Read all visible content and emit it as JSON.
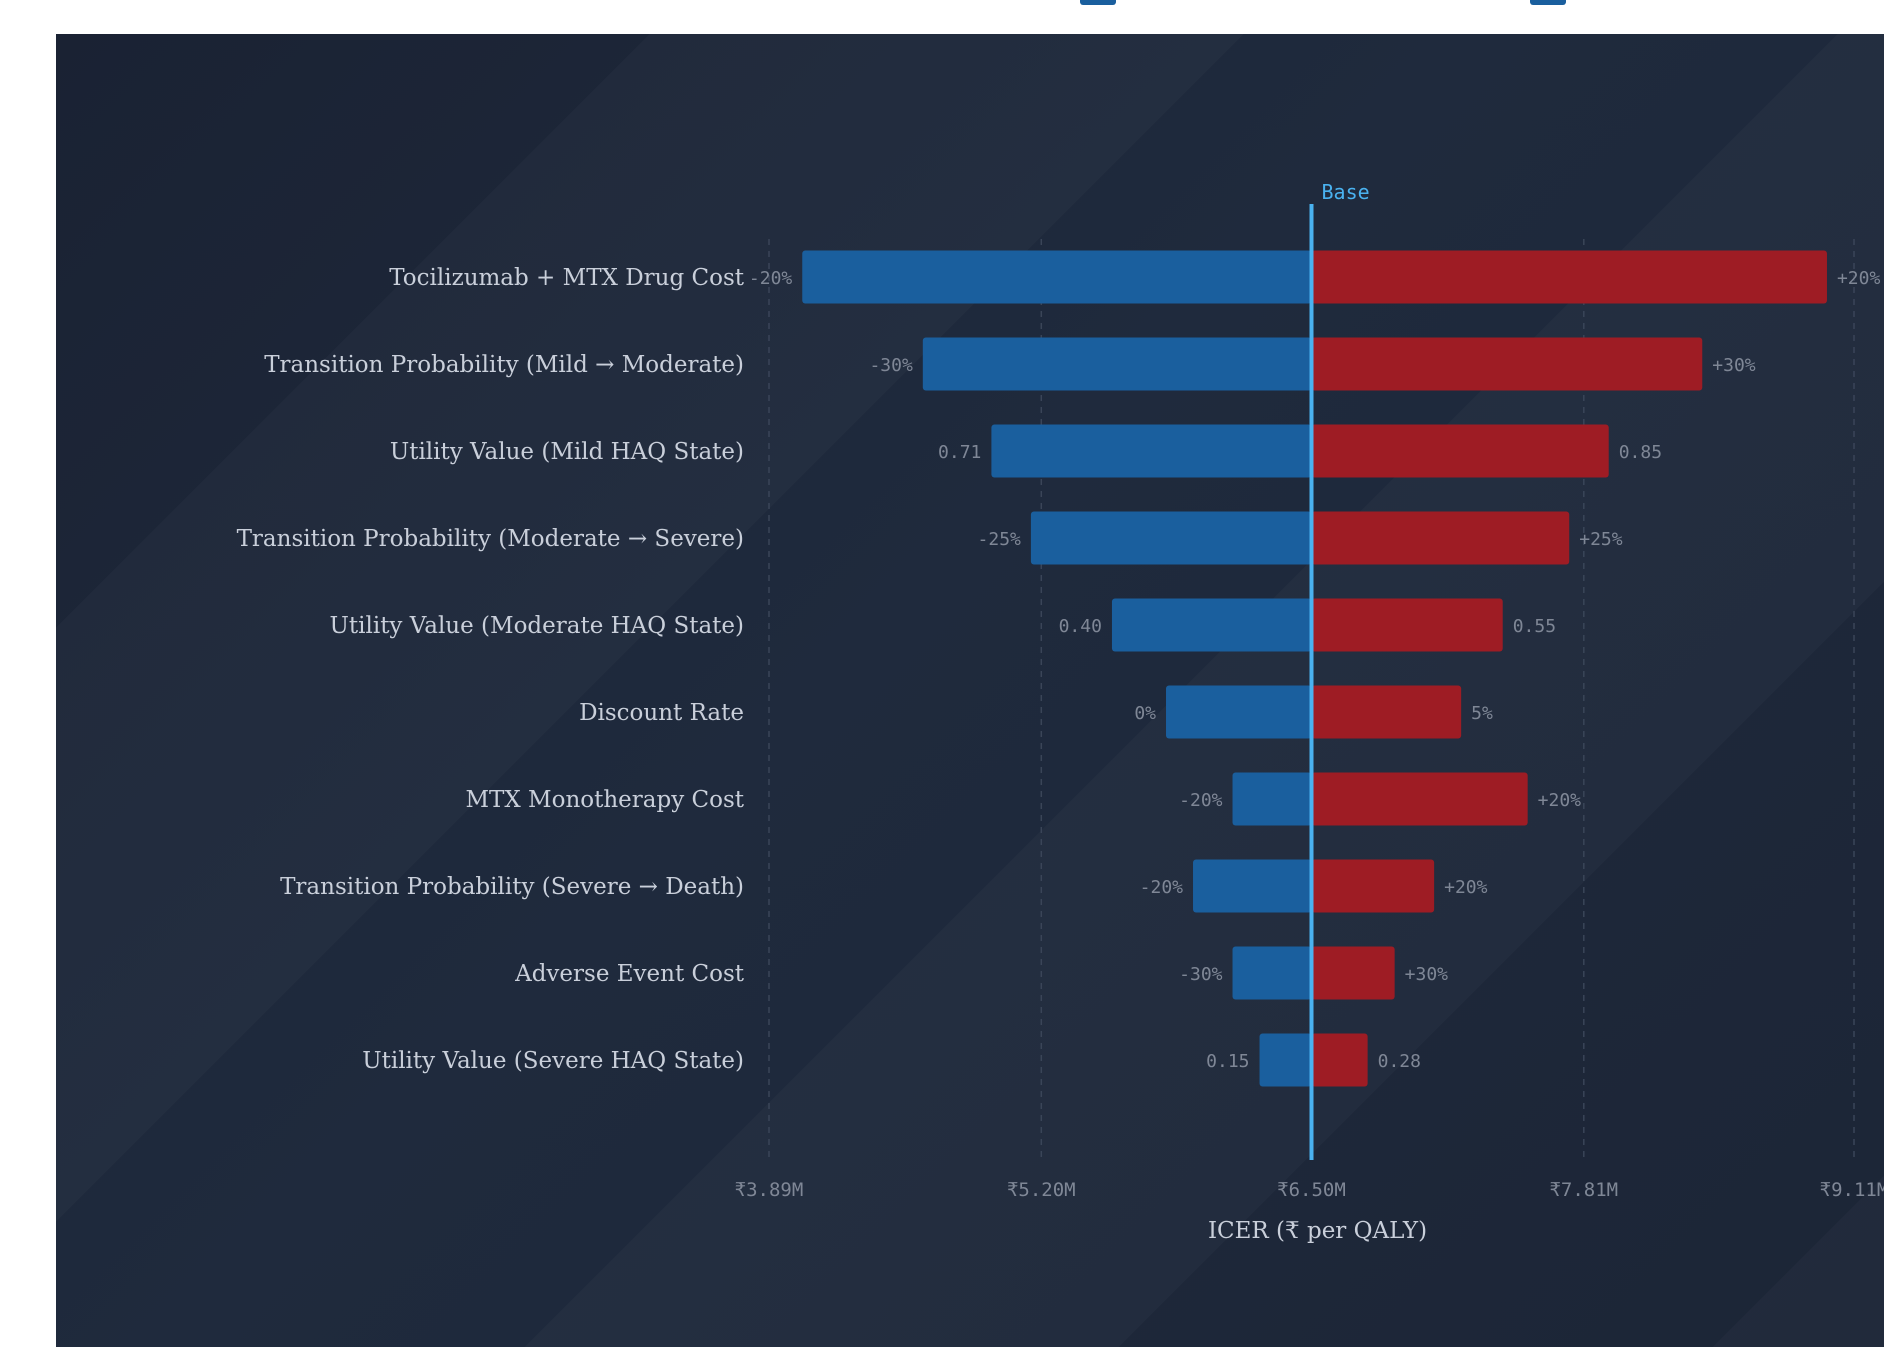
{
  "chart_data": {
    "type": "tornado",
    "xlabel": "ICER (₹ per QALY)",
    "base_label": "Base",
    "base_value": 6.5,
    "xlim": [
      3.89,
      9.11
    ],
    "ticks": [
      {
        "value": 3.89,
        "label": "₹3.89M"
      },
      {
        "value": 5.2,
        "label": "₹5.20M"
      },
      {
        "value": 6.5,
        "label": "₹6.50M"
      },
      {
        "value": 7.81,
        "label": "₹7.81M"
      },
      {
        "value": 9.11,
        "label": "₹9.11M"
      }
    ],
    "grid": true,
    "colors": {
      "low": "#1a5f9e",
      "high": "#9e1c24",
      "base_line": "#4ab2f0"
    },
    "parameters": [
      {
        "name": "Tocilizumab + MTX Drug Cost",
        "low": 4.05,
        "high": 8.98,
        "low_label": "-20%",
        "high_label": "+20%"
      },
      {
        "name": "Transition Probability (Mild → Moderate)",
        "low": 4.63,
        "high": 8.38,
        "low_label": "-30%",
        "high_label": "+30%"
      },
      {
        "name": "Utility Value (Mild HAQ State)",
        "low": 4.96,
        "high": 7.93,
        "low_label": "0.71",
        "high_label": "0.85"
      },
      {
        "name": "Transition Probability (Moderate → Severe)",
        "low": 5.15,
        "high": 7.74,
        "low_label": "-25%",
        "high_label": "+25%"
      },
      {
        "name": "Utility Value (Moderate HAQ State)",
        "low": 5.54,
        "high": 7.42,
        "low_label": "0.40",
        "high_label": "0.55"
      },
      {
        "name": "Discount Rate",
        "low": 5.8,
        "high": 7.22,
        "low_label": "0%",
        "high_label": "5%"
      },
      {
        "name": "MTX Monotherapy Cost",
        "low": 6.12,
        "high": 7.54,
        "low_label": "-20%",
        "high_label": "+20%"
      },
      {
        "name": "Transition Probability (Severe → Death)",
        "low": 5.93,
        "high": 7.09,
        "low_label": "-20%",
        "high_label": "+20%"
      },
      {
        "name": "Adverse Event Cost",
        "low": 6.12,
        "high": 6.9,
        "low_label": "-30%",
        "high_label": "+30%"
      },
      {
        "name": "Utility Value (Severe HAQ State)",
        "low": 6.25,
        "high": 6.77,
        "low_label": "0.15",
        "high_label": "0.28"
      }
    ]
  }
}
